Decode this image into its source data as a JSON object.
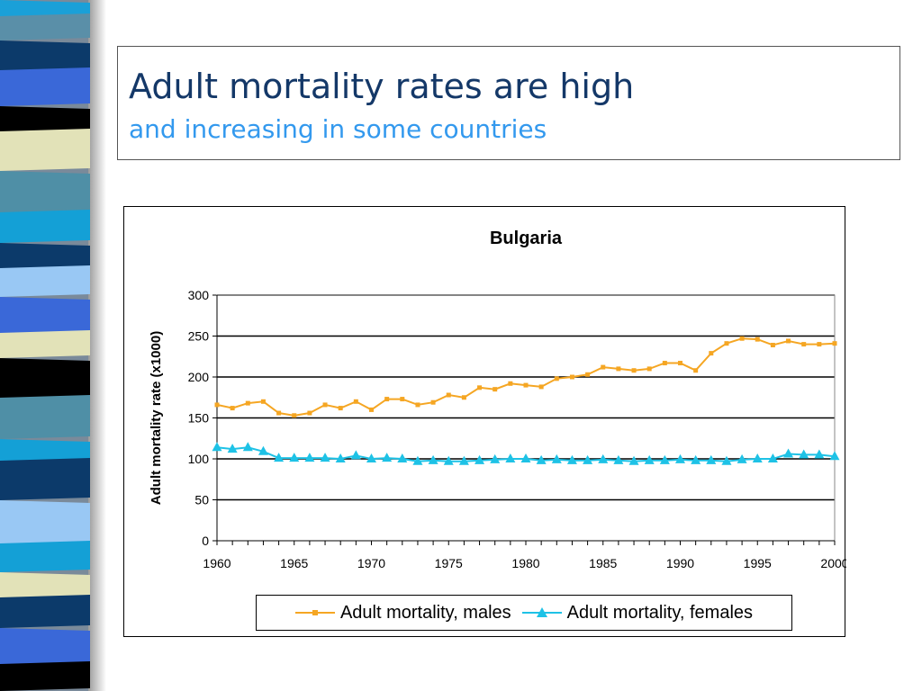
{
  "slide": {
    "title": "Adult mortality rates are high",
    "subtitle": "and increasing in some countries"
  },
  "colors": {
    "title": "#143868",
    "subtitle": "#3399ee",
    "males": "#f5a623",
    "females": "#1ec2e6"
  },
  "chart_data": {
    "type": "line",
    "title": "Bulgaria",
    "xlabel": "",
    "ylabel": "Adult mortality rate (x1000)",
    "xlim": [
      1960,
      2000
    ],
    "ylim": [
      0,
      300
    ],
    "yticks": [
      0,
      50,
      100,
      150,
      200,
      250,
      300
    ],
    "xticks": [
      1960,
      1965,
      1970,
      1975,
      1980,
      1985,
      1990,
      1995,
      2000
    ],
    "grid": "horizontal",
    "legend_position": "bottom",
    "x": [
      1960,
      1961,
      1962,
      1963,
      1964,
      1965,
      1966,
      1967,
      1968,
      1969,
      1970,
      1971,
      1972,
      1973,
      1974,
      1975,
      1976,
      1977,
      1978,
      1979,
      1980,
      1981,
      1982,
      1983,
      1984,
      1985,
      1986,
      1987,
      1988,
      1989,
      1990,
      1991,
      1992,
      1993,
      1994,
      1995,
      1996,
      1997,
      1998,
      1999,
      2000
    ],
    "series": [
      {
        "name": "Adult mortality, males",
        "marker": "square",
        "values": [
          166,
          162,
          168,
          170,
          156,
          153,
          156,
          166,
          162,
          170,
          160,
          173,
          173,
          166,
          169,
          178,
          175,
          187,
          185,
          192,
          190,
          188,
          198,
          200,
          203,
          212,
          210,
          208,
          210,
          217,
          217,
          208,
          229,
          241,
          247,
          246,
          239,
          244,
          240,
          240,
          241
        ]
      },
      {
        "name": "Adult mortality, females",
        "marker": "triangle",
        "values": [
          114,
          112,
          114,
          109,
          101,
          101,
          101,
          101,
          100,
          104,
          100,
          101,
          100,
          97,
          98,
          97,
          97,
          98,
          99,
          100,
          100,
          98,
          99,
          98,
          98,
          99,
          98,
          97,
          98,
          98,
          99,
          98,
          98,
          97,
          99,
          100,
          100,
          106,
          105,
          105,
          103
        ]
      }
    ]
  }
}
